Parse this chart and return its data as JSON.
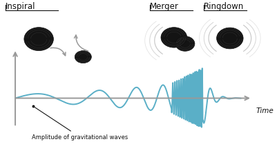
{
  "background_color": "#ffffff",
  "wave_color": "#5aafc7",
  "axis_color": "#999999",
  "text_color": "#111111",
  "arrow_color": "#999999",
  "bh_dark": "#1a1a1a",
  "bh_mid": "#2d2d2d",
  "bh_ring": "#555555",
  "title_inspiral": "Inspiral",
  "title_merger": "Merger",
  "title_ringdown": "Ringdown",
  "annotation": "Amplitude of gravitational waves",
  "time_label": "Time",
  "figsize": [
    4.01,
    2.26
  ],
  "dpi": 100
}
